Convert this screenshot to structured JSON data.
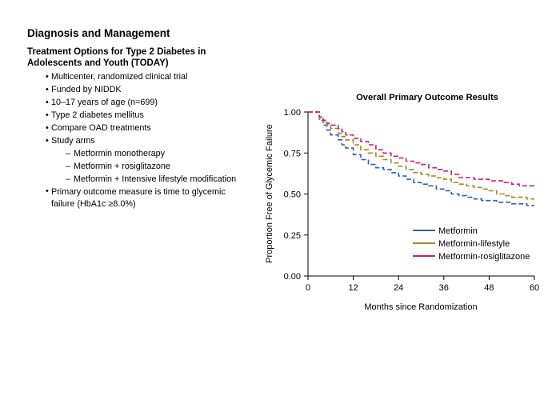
{
  "slide": {
    "title": "Diagnosis and Management",
    "section_title": "Treatment Options for Type 2 Diabetes in Adolescents and Youth (TODAY)",
    "bullets": [
      "Multicenter, randomized clinical trial",
      "Funded by NIDDK",
      "10–17 years of age (n=699)",
      "Type 2 diabetes mellitus",
      "Compare OAD treatments",
      "Study arms"
    ],
    "study_arms": [
      "Metformin monotherapy",
      "Metformin + rosiglitazone",
      "Metformin + Intensive lifestyle modification"
    ],
    "primary_outcome": "Primary outcome measure is time to glycemic failure (HbA1c ≥8.0%)"
  },
  "chart_data": {
    "type": "line",
    "title": "Overall Primary Outcome Results",
    "xlabel": "Months since Randomization",
    "ylabel": "Proportion Free of Glycemic Failure",
    "xlim": [
      0,
      60
    ],
    "ylim": [
      0,
      1
    ],
    "xticks": [
      "0",
      "12",
      "24",
      "36",
      "48",
      "60"
    ],
    "yticks": [
      "0.00",
      "0.25",
      "0.50",
      "0.75",
      "1.00"
    ],
    "legend_position": "bottom-right",
    "line_style": "dashed step",
    "series": [
      {
        "name": "Metformin",
        "color": "#2e5fb3",
        "x": [
          2,
          3,
          4,
          5,
          6,
          8,
          9,
          10,
          12,
          14,
          16,
          18,
          20,
          22,
          24,
          26,
          28,
          30,
          32,
          34,
          36,
          38,
          40,
          42,
          44,
          46,
          48,
          50,
          52,
          54,
          56,
          58,
          60
        ],
        "y": [
          1.0,
          0.95,
          0.92,
          0.89,
          0.86,
          0.83,
          0.8,
          0.78,
          0.74,
          0.71,
          0.68,
          0.66,
          0.65,
          0.63,
          0.61,
          0.59,
          0.57,
          0.56,
          0.55,
          0.53,
          0.52,
          0.5,
          0.49,
          0.48,
          0.47,
          0.46,
          0.46,
          0.45,
          0.45,
          0.44,
          0.44,
          0.43,
          0.43
        ]
      },
      {
        "name": "Metformin-lifestyle",
        "color": "#9a8f1c",
        "x": [
          2,
          3,
          4,
          5,
          6,
          8,
          9,
          10,
          12,
          14,
          16,
          18,
          20,
          22,
          24,
          26,
          28,
          30,
          32,
          34,
          36,
          38,
          40,
          42,
          44,
          46,
          48,
          50,
          52,
          54,
          56,
          58,
          60
        ],
        "y": [
          1.0,
          0.96,
          0.94,
          0.92,
          0.9,
          0.87,
          0.85,
          0.83,
          0.8,
          0.77,
          0.75,
          0.73,
          0.71,
          0.69,
          0.67,
          0.65,
          0.63,
          0.62,
          0.61,
          0.6,
          0.59,
          0.57,
          0.56,
          0.55,
          0.54,
          0.53,
          0.52,
          0.5,
          0.49,
          0.48,
          0.48,
          0.47,
          0.47
        ]
      },
      {
        "name": "Metformin-rosiglitazone",
        "color": "#cc1f6e",
        "x": [
          2,
          3,
          4,
          5,
          6,
          8,
          9,
          10,
          12,
          14,
          16,
          18,
          20,
          22,
          24,
          26,
          28,
          30,
          32,
          34,
          36,
          38,
          40,
          42,
          44,
          46,
          48,
          50,
          52,
          54,
          56,
          58,
          60
        ],
        "y": [
          1.0,
          0.97,
          0.95,
          0.93,
          0.92,
          0.9,
          0.88,
          0.86,
          0.84,
          0.82,
          0.8,
          0.77,
          0.75,
          0.73,
          0.72,
          0.7,
          0.69,
          0.68,
          0.66,
          0.65,
          0.64,
          0.62,
          0.6,
          0.6,
          0.59,
          0.59,
          0.58,
          0.58,
          0.57,
          0.56,
          0.55,
          0.55,
          0.55
        ]
      }
    ]
  }
}
